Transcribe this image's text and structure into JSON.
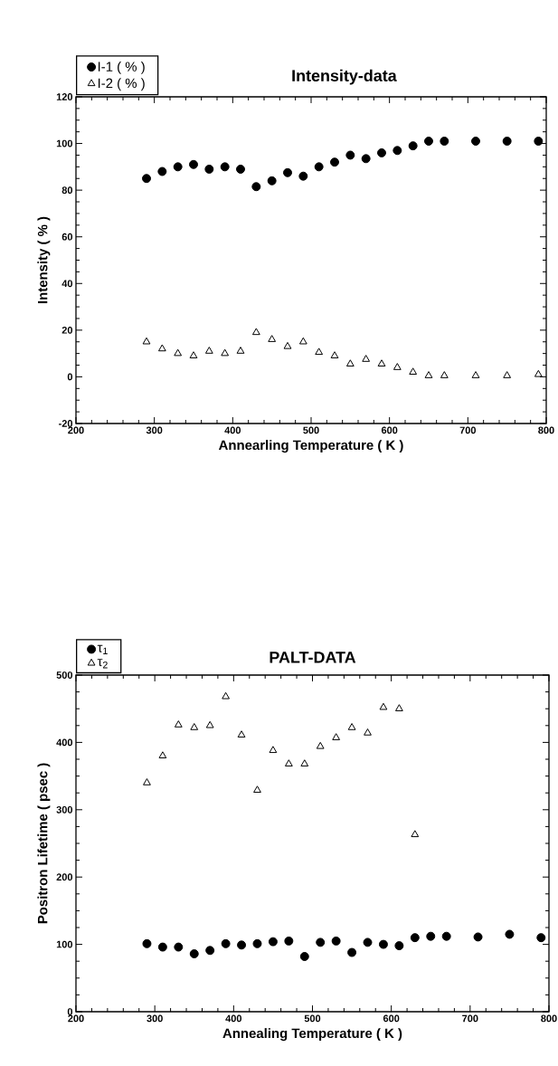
{
  "chart_data": [
    {
      "type": "scatter",
      "title": "Intensity-data",
      "xlabel": "Annearling Temperature ( K )",
      "ylabel": "Intensity ( % )",
      "xlim": [
        200,
        800
      ],
      "ylim": [
        -20,
        120
      ],
      "xticks": [
        200,
        300,
        400,
        500,
        600,
        700,
        800
      ],
      "yticks": [
        -20,
        0,
        20,
        40,
        60,
        80,
        100,
        120
      ],
      "legend": "top left",
      "grid": false,
      "x": [
        290,
        310,
        330,
        350,
        370,
        390,
        410,
        430,
        450,
        470,
        490,
        510,
        530,
        550,
        570,
        590,
        610,
        630,
        650,
        670,
        710,
        750,
        790
      ],
      "series": [
        {
          "name": "I-1 ( % )",
          "color": "#000000",
          "marker": "circle",
          "values": [
            85,
            88,
            90,
            91,
            89,
            90,
            89,
            81.5,
            84,
            87.5,
            86,
            90,
            92,
            95,
            93.5,
            96,
            97,
            99,
            101,
            101,
            101,
            101,
            101
          ]
        },
        {
          "name": "I-2 ( % )",
          "color": "#000000",
          "marker": "triangle",
          "values": [
            15,
            12,
            10,
            9,
            11,
            10,
            11,
            19,
            16,
            13,
            15,
            10.5,
            9,
            5.5,
            7.5,
            5.5,
            4,
            2,
            0.5,
            0.5,
            0.5,
            0.5,
            1
          ]
        }
      ]
    },
    {
      "type": "scatter",
      "title": "PALT-DATA",
      "xlabel": "Annealing Temperature ( K )",
      "ylabel": "Positron Lifetime ( psec )",
      "xlim": [
        200,
        800
      ],
      "ylim": [
        0,
        500
      ],
      "xticks": [
        200,
        300,
        400,
        500,
        600,
        700,
        800
      ],
      "yticks": [
        0,
        100,
        200,
        300,
        400,
        500
      ],
      "legend": "top left",
      "grid": false,
      "series": [
        {
          "name": "τ$_{1}$",
          "color": "#000000",
          "marker": "circle",
          "x": [
            290,
            310,
            330,
            350,
            370,
            390,
            410,
            430,
            450,
            470,
            490,
            510,
            530,
            550,
            570,
            590,
            610,
            630,
            650,
            670,
            710,
            750,
            790
          ],
          "values": [
            101,
            96,
            96,
            86,
            91,
            101,
            99,
            101,
            104,
            105,
            82,
            103,
            105,
            88,
            103,
            100,
            98,
            110,
            112,
            112,
            111,
            115,
            110
          ]
        },
        {
          "name": "τ$_{2}$",
          "color": "#000000",
          "marker": "triangle",
          "x": [
            290,
            310,
            330,
            350,
            370,
            390,
            410,
            430,
            450,
            470,
            490,
            510,
            530,
            550,
            570,
            590,
            610,
            630
          ],
          "values": [
            340,
            380,
            426,
            422,
            425,
            468,
            411,
            329,
            388,
            368,
            368,
            394,
            407,
            422,
            414,
            452,
            450,
            263
          ]
        }
      ]
    }
  ]
}
